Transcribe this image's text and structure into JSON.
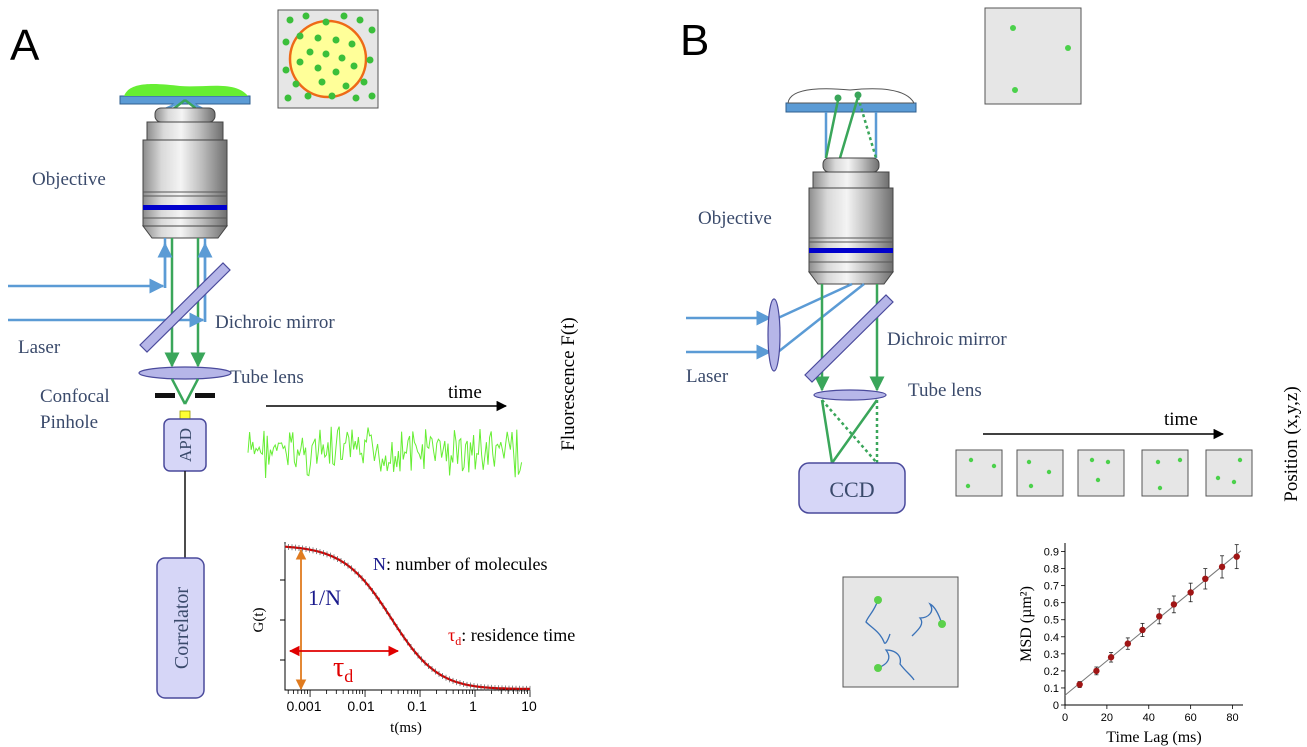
{
  "panel_a": {
    "letter": "A",
    "objective_label": "Objective",
    "dichroic_label": "Dichroic mirror",
    "laser_label": "Laser",
    "confocal_label_line1": "Confocal",
    "confocal_label_line2": "Pinhole",
    "tube_lens_label": "Tube lens",
    "apd_label": "APD",
    "correlator_label": "Correlator",
    "time_label": "time",
    "fluorescence_label": "Fluorescence F(t)",
    "fcs_curve": {
      "ylabel": "G(t)",
      "xlabel": "t(ms)",
      "x_scale": "log",
      "xticks": [
        "0.001",
        "0.01",
        "0.1",
        "1",
        "10"
      ],
      "amplitude_label": "1/N",
      "tau_label": "τ",
      "tau_subscript": "d",
      "n_legend_symbol": "N",
      "n_legend_text": ": number of molecules",
      "tau_legend_symbol": "τ",
      "tau_legend_subscript": "d",
      "tau_legend_text": ": residence time"
    }
  },
  "panel_b": {
    "letter": "B",
    "objective_label": "Objective",
    "dichroic_label": "Dichroic mirror",
    "laser_label": "Laser",
    "tube_lens_label": "Tube lens",
    "ccd_label": "CCD",
    "time_label": "time",
    "position_label": "Position (x,y,z)"
  },
  "chart_data": {
    "type": "scatter",
    "title": "",
    "xlabel": "Time Lag (ms)",
    "ylabel": "MSD (µm²)",
    "xlim": [
      0,
      85
    ],
    "ylim": [
      0,
      0.95
    ],
    "xticks": [
      "0",
      "20",
      "40",
      "60",
      "80"
    ],
    "yticks": [
      "0",
      "0.1",
      "0.2",
      "0.3",
      "0.4",
      "0.5",
      "0.6",
      "0.7",
      "0.8",
      "0.9"
    ],
    "x": [
      7,
      15,
      22,
      30,
      37,
      45,
      52,
      60,
      67,
      75,
      82
    ],
    "y": [
      0.12,
      0.2,
      0.28,
      0.36,
      0.44,
      0.52,
      0.59,
      0.66,
      0.74,
      0.81,
      0.87
    ],
    "error_bars": true,
    "fit_line": true,
    "grid": false,
    "marker_color": "#a01515"
  },
  "colors": {
    "beam_blue": "#5b9bd5",
    "beam_green": "#3aa65a",
    "fluor_green": "#66ee33",
    "label_blue": "#3a4a6b",
    "box_fill": "#d6d6f7",
    "box_stroke": "#4a4a9c",
    "curve_red": "#d40000",
    "arrow_orange": "#e07b1f"
  }
}
